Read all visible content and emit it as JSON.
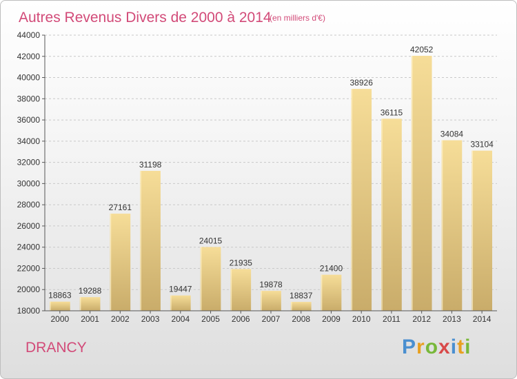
{
  "chart_data": {
    "type": "bar",
    "title": "Autres Revenus Divers de 2000 à 2014",
    "subtitle": "(en milliers d'€)",
    "categories": [
      "2000",
      "2001",
      "2002",
      "2003",
      "2004",
      "2005",
      "2006",
      "2007",
      "2008",
      "2009",
      "2010",
      "2011",
      "2012",
      "2013",
      "2014"
    ],
    "values": [
      18863,
      19288,
      27161,
      31198,
      19447,
      24015,
      21935,
      19878,
      18837,
      21400,
      38926,
      36115,
      42052,
      34084,
      33104
    ],
    "ylim": [
      18000,
      44000
    ],
    "yticks": [
      18000,
      20000,
      22000,
      24000,
      26000,
      28000,
      30000,
      32000,
      34000,
      36000,
      38000,
      40000,
      42000,
      44000
    ],
    "grid": true,
    "bar_color": "#e8cc85"
  },
  "footer": {
    "city": "DRANCY",
    "brand_letters": [
      {
        "char": "P",
        "color": "#4a8fd0"
      },
      {
        "char": "r",
        "color": "#e8a020"
      },
      {
        "char": "o",
        "color": "#78b83a"
      },
      {
        "char": "x",
        "color": "#d84a4a"
      },
      {
        "char": "i",
        "color": "#4a8fd0"
      },
      {
        "char": "t",
        "color": "#e8a020"
      },
      {
        "char": "i",
        "color": "#78b83a"
      }
    ]
  }
}
